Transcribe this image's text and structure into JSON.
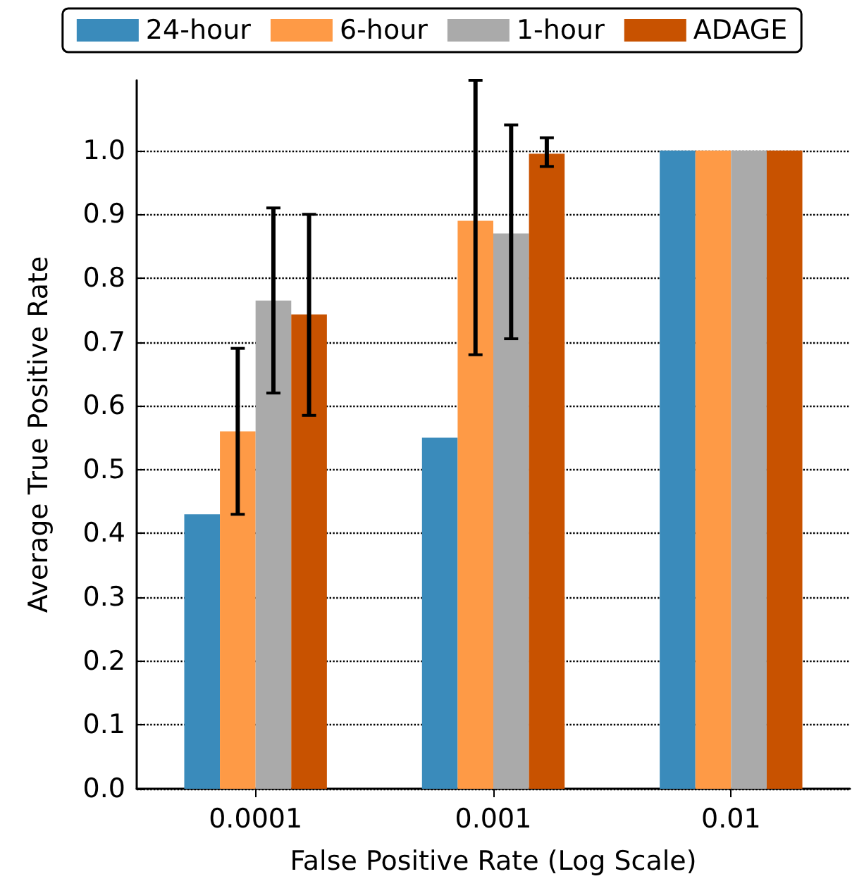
{
  "chart_data": {
    "type": "bar",
    "xlabel": "False Positive Rate (Log Scale)",
    "ylabel": "Average True Positive Rate",
    "categories": [
      "0.0001",
      "0.001",
      "0.01"
    ],
    "series": [
      {
        "name": "24-hour",
        "color": "#3a8bbb",
        "values": [
          0.43,
          0.55,
          1.0
        ]
      },
      {
        "name": "6-hour",
        "color": "#fe9a46",
        "values": [
          0.56,
          0.89,
          1.0
        ],
        "errors": [
          [
            0.43,
            0.69
          ],
          [
            0.68,
            1.11
          ],
          null
        ]
      },
      {
        "name": "1-hour",
        "color": "#aaaaaa",
        "values": [
          0.765,
          0.87,
          1.0
        ],
        "errors": [
          [
            0.62,
            0.91
          ],
          [
            0.705,
            1.04
          ],
          null
        ]
      },
      {
        "name": "ADAGE",
        "color": "#c85200",
        "values": [
          0.743,
          0.995,
          1.0
        ],
        "errors": [
          [
            0.585,
            0.9
          ],
          [
            0.975,
            1.02
          ],
          null
        ]
      }
    ],
    "ylim": [
      0,
      1.11
    ],
    "yticks": [
      {
        "value": 0,
        "label": "0.0"
      },
      0.1,
      0.2,
      0.3,
      0.4,
      0.5,
      0.6,
      0.7,
      0.8,
      0.9,
      {
        "value": 1,
        "label": "1.0"
      }
    ],
    "grid": "y",
    "legend": "top"
  }
}
